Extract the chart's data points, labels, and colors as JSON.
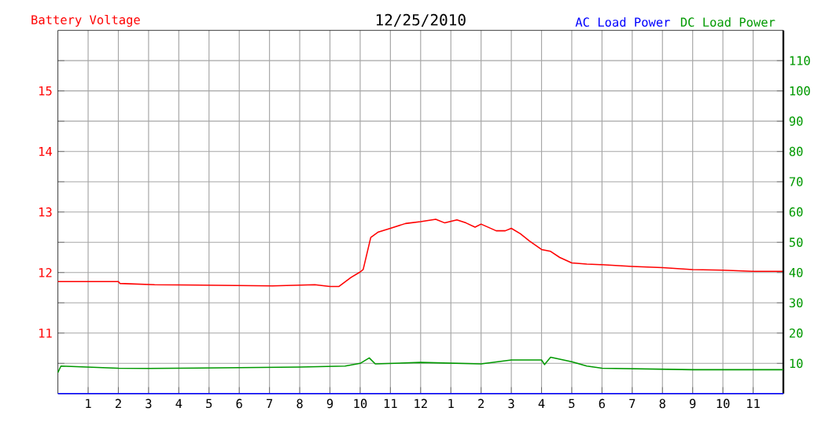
{
  "chart_data": {
    "type": "line",
    "title": "12/25/2010",
    "xlim": [
      "2010-12-25T00:00",
      "2010-12-26T00:00"
    ],
    "xticks": [
      {
        "value": "2010-12-25T01:00",
        "label": "1"
      },
      {
        "value": "2010-12-25T02:00",
        "label": "2"
      },
      {
        "value": "2010-12-25T03:00",
        "label": "3"
      },
      {
        "value": "2010-12-25T04:00",
        "label": "4"
      },
      {
        "value": "2010-12-25T05:00",
        "label": "5"
      },
      {
        "value": "2010-12-25T06:00",
        "label": "6"
      },
      {
        "value": "2010-12-25T07:00",
        "label": "7"
      },
      {
        "value": "2010-12-25T08:00",
        "label": "8"
      },
      {
        "value": "2010-12-25T09:00",
        "label": "9"
      },
      {
        "value": "2010-12-25T10:00",
        "label": "10"
      },
      {
        "value": "2010-12-25T11:00",
        "label": "11"
      },
      {
        "value": "2010-12-25T12:00",
        "label": "12"
      },
      {
        "value": "2010-12-25T13:00",
        "label": "1"
      },
      {
        "value": "2010-12-25T14:00",
        "label": "2"
      },
      {
        "value": "2010-12-25T15:00",
        "label": "3"
      },
      {
        "value": "2010-12-25T16:00",
        "label": "4"
      },
      {
        "value": "2010-12-25T17:00",
        "label": "5"
      },
      {
        "value": "2010-12-25T18:00",
        "label": "6"
      },
      {
        "value": "2010-12-25T19:00",
        "label": "7"
      },
      {
        "value": "2010-12-25T20:00",
        "label": "8"
      },
      {
        "value": "2010-12-25T21:00",
        "label": "9"
      },
      {
        "value": "2010-12-25T22:00",
        "label": "10"
      },
      {
        "value": "2010-12-25T23:00",
        "label": "11"
      }
    ],
    "ylim": [
      10,
      16
    ],
    "yticks": [
      {
        "value": 10.5,
        "label": null
      },
      11,
      {
        "value": 11.5,
        "label": null
      },
      12,
      {
        "value": 12.5,
        "label": null
      },
      13,
      {
        "value": 13.5,
        "label": null
      },
      14,
      {
        "value": 14.5,
        "label": null
      },
      15,
      {
        "value": 15.5,
        "label": null
      }
    ],
    "y2lim": [
      0,
      120
    ],
    "y2ticks": [
      10,
      20,
      30,
      40,
      50,
      60,
      70,
      80,
      90,
      100,
      110
    ],
    "grid": true,
    "legend": "top",
    "marker": "none",
    "line_style": "solid",
    "series": [
      {
        "name": "Battery Voltage",
        "color": "#ff0000",
        "x": [
          "2010-12-25T00:00",
          "2010-12-25T02:00",
          "2010-12-25T02:03",
          "2010-12-25T03:12",
          "2010-12-25T07:06",
          "2010-12-25T08:30",
          "2010-12-25T09:00",
          "2010-12-25T09:18",
          "2010-12-25T09:42",
          "2010-12-25T10:00",
          "2010-12-25T10:06",
          "2010-12-25T10:21",
          "2010-12-25T10:36",
          "2010-12-25T11:00",
          "2010-12-25T11:30",
          "2010-12-25T12:00",
          "2010-12-25T12:30",
          "2010-12-25T12:48",
          "2010-12-25T13:12",
          "2010-12-25T13:30",
          "2010-12-25T13:48",
          "2010-12-25T14:00",
          "2010-12-25T14:30",
          "2010-12-25T14:48",
          "2010-12-25T15:00",
          "2010-12-25T15:18",
          "2010-12-25T15:36",
          "2010-12-25T16:00",
          "2010-12-25T16:18",
          "2010-12-25T16:36",
          "2010-12-25T17:00",
          "2010-12-25T17:30",
          "2010-12-25T18:00",
          "2010-12-25T19:00",
          "2010-12-25T20:00",
          "2010-12-25T21:00",
          "2010-12-25T22:00",
          "2010-12-25T23:00",
          "2010-12-26T00:00"
        ],
        "values": [
          11.85,
          11.85,
          11.82,
          11.8,
          11.78,
          11.8,
          11.77,
          11.77,
          11.92,
          12.01,
          12.05,
          12.58,
          12.67,
          12.73,
          12.81,
          12.84,
          12.88,
          12.82,
          12.87,
          12.82,
          12.75,
          12.8,
          12.69,
          12.69,
          12.73,
          12.64,
          12.52,
          12.38,
          12.35,
          12.25,
          12.16,
          12.14,
          12.13,
          12.1,
          12.08,
          12.05,
          12.04,
          12.02,
          12.02
        ]
      },
      {
        "name": "AC Load Power",
        "color": "#0000ff",
        "axis": "y2",
        "x": [
          "2010-12-25T00:00",
          "2010-12-26T00:00"
        ],
        "values": [
          0,
          0
        ]
      },
      {
        "name": "DC Load Power",
        "color": "#009900",
        "axis": "y2",
        "x": [
          "2010-12-25T00:00",
          "2010-12-25T00:06",
          "2010-12-25T02:00",
          "2010-12-25T03:00",
          "2010-12-25T08:00",
          "2010-12-25T09:30",
          "2010-12-25T10:00",
          "2010-12-25T10:18",
          "2010-12-25T10:30",
          "2010-12-25T12:00",
          "2010-12-25T14:00",
          "2010-12-25T15:00",
          "2010-12-25T16:00",
          "2010-12-25T16:06",
          "2010-12-25T16:18",
          "2010-12-25T17:00",
          "2010-12-25T17:30",
          "2010-12-25T18:00",
          "2010-12-25T21:00",
          "2010-12-26T00:00"
        ],
        "values": [
          7,
          9.1,
          8.4,
          8.3,
          8.8,
          9.1,
          10,
          11.8,
          9.8,
          10.3,
          9.8,
          11.1,
          11.1,
          9.6,
          12,
          10.5,
          9.1,
          8.4,
          7.9,
          7.9
        ]
      }
    ]
  }
}
